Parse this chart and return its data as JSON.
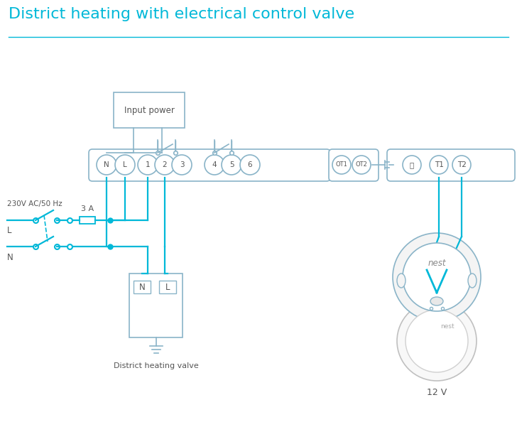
{
  "title": "District heating with electrical control valve",
  "title_color": "#00b8d8",
  "title_fontsize": 16,
  "bg_color": "#ffffff",
  "wire_color": "#00b8d8",
  "box_color": "#8ab4c8",
  "terminal_labels_main": [
    "N",
    "L",
    "1",
    "2",
    "3",
    "4",
    "5",
    "6"
  ],
  "terminal_labels_ot": [
    "OT1",
    "OT2"
  ],
  "terminal_labels_t": [
    "⏚",
    "T1",
    "T2"
  ],
  "input_power_label": "Input power",
  "district_valve_label": "District heating valve",
  "nest_label_12v": "12 V",
  "fuse_label": "3 A",
  "label_230v": "230V AC/50 Hz",
  "label_L": "L",
  "label_N": "N"
}
